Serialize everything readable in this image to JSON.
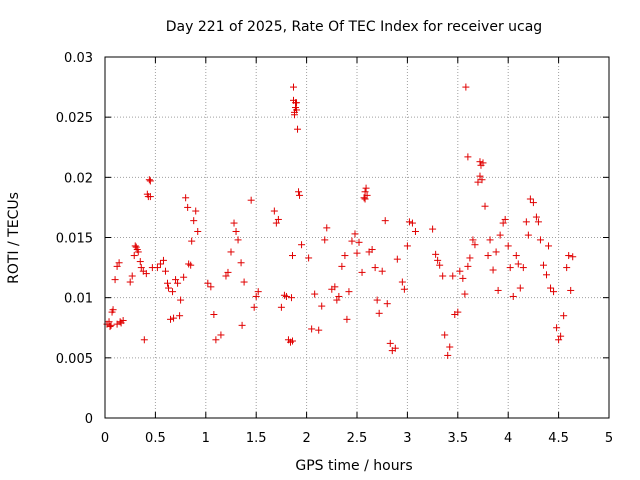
{
  "chart_data": {
    "type": "scatter",
    "title": "Day 221 of 2025, Rate Of TEC Index for receiver ucag",
    "xlabel": "GPS time / hours",
    "ylabel": "ROTI / TECUs",
    "xlim": [
      0,
      5
    ],
    "ylim": [
      0,
      0.03
    ],
    "grid": true,
    "marker": "+",
    "color": "#e00000",
    "x_ticks": [
      "0",
      "0.5",
      "1",
      "1.5",
      "2",
      "2.5",
      "3",
      "3.5",
      "4",
      "4.5",
      "5"
    ],
    "y_ticks": [
      "0",
      "0.005",
      "0.01",
      "0.015",
      "0.02",
      "0.025",
      "0.03"
    ],
    "series": [
      {
        "name": "ROTI",
        "x": [
          0.02,
          0.04,
          0.06,
          0.08,
          0.1,
          0.12,
          0.14,
          0.16,
          0.05,
          0.07,
          0.12,
          0.15,
          0.18,
          0.25,
          0.27,
          0.29,
          0.3,
          0.31,
          0.32,
          0.33,
          0.35,
          0.36,
          0.38,
          0.39,
          0.41,
          0.42,
          0.43,
          0.45,
          0.47,
          0.52,
          0.55,
          0.58,
          0.6,
          0.62,
          0.63,
          0.65,
          0.67,
          0.68,
          0.7,
          0.72,
          0.74,
          0.75,
          0.78,
          0.8,
          0.82,
          0.83,
          0.85,
          0.86,
          0.88,
          0.9,
          0.92,
          1.02,
          1.05,
          1.08,
          1.1,
          1.15,
          1.2,
          1.22,
          1.25,
          1.28,
          1.3,
          1.32,
          1.35,
          1.36,
          1.38,
          1.45,
          1.48,
          1.5,
          1.52,
          1.68,
          1.7,
          1.72,
          1.75,
          1.78,
          1.8,
          1.82,
          1.84,
          1.86,
          1.87,
          1.88,
          1.89,
          1.9,
          1.91,
          1.92,
          1.93,
          1.95,
          2.02,
          2.05,
          2.08,
          2.12,
          2.15,
          2.18,
          2.2,
          2.25,
          2.28,
          2.3,
          2.32,
          2.35,
          2.38,
          2.4,
          2.42,
          2.45,
          2.48,
          2.5,
          2.52,
          2.55,
          2.57,
          2.58,
          2.6,
          2.62,
          2.65,
          2.68,
          2.7,
          2.72,
          2.75,
          2.78,
          2.8,
          2.83,
          2.85,
          2.88,
          2.9,
          2.95,
          2.97,
          3.0,
          3.02,
          3.05,
          3.08,
          3.25,
          3.28,
          3.3,
          3.32,
          3.35,
          3.37,
          3.4,
          3.42,
          3.45,
          3.47,
          3.5,
          3.52,
          3.55,
          3.57,
          3.6,
          3.62,
          3.65,
          3.67,
          3.7,
          3.72,
          3.74,
          3.75,
          3.77,
          3.8,
          3.82,
          3.85,
          3.88,
          3.9,
          3.92,
          3.95,
          3.97,
          4.0,
          4.02,
          4.05,
          4.08,
          4.1,
          4.12,
          4.15,
          4.18,
          4.2,
          4.22,
          4.25,
          4.28,
          4.3,
          4.32,
          4.35,
          4.38,
          4.4,
          4.42,
          4.45,
          4.48,
          4.5,
          4.52,
          4.55,
          4.58,
          4.6,
          4.62,
          4.64,
          3.58,
          3.6,
          3.72,
          3.73,
          1.87,
          1.88,
          1.89,
          1.9,
          0.44,
          0.45,
          2.58,
          2.59,
          1.85,
          1.86
        ],
        "y": [
          0.0078,
          0.008,
          0.0077,
          0.009,
          0.0115,
          0.0126,
          0.0129,
          0.0079,
          0.0076,
          0.0088,
          0.0078,
          0.008,
          0.0081,
          0.0113,
          0.0118,
          0.0135,
          0.0143,
          0.0142,
          0.014,
          0.0138,
          0.013,
          0.0125,
          0.0122,
          0.0065,
          0.012,
          0.0186,
          0.0184,
          0.0197,
          0.0125,
          0.0125,
          0.0128,
          0.0131,
          0.0122,
          0.0112,
          0.0108,
          0.0082,
          0.0105,
          0.0083,
          0.0115,
          0.0112,
          0.0085,
          0.0098,
          0.0117,
          0.0183,
          0.0175,
          0.0128,
          0.0127,
          0.0147,
          0.0164,
          0.0172,
          0.0155,
          0.0112,
          0.0109,
          0.0086,
          0.0065,
          0.0069,
          0.0118,
          0.0121,
          0.0138,
          0.0162,
          0.0155,
          0.0148,
          0.0129,
          0.0077,
          0.0113,
          0.0181,
          0.0092,
          0.0101,
          0.0105,
          0.0172,
          0.0162,
          0.0165,
          0.0092,
          0.0102,
          0.0101,
          0.0065,
          0.0063,
          0.0135,
          0.0275,
          0.0254,
          0.0258,
          0.0262,
          0.024,
          0.0188,
          0.0185,
          0.0144,
          0.0133,
          0.0074,
          0.0103,
          0.0073,
          0.0093,
          0.0148,
          0.0158,
          0.0107,
          0.0109,
          0.0098,
          0.0101,
          0.0126,
          0.0135,
          0.0082,
          0.0105,
          0.0147,
          0.0153,
          0.0137,
          0.0146,
          0.0121,
          0.0183,
          0.0188,
          0.0185,
          0.0138,
          0.014,
          0.0125,
          0.0098,
          0.0087,
          0.0122,
          0.0164,
          0.0095,
          0.0062,
          0.0056,
          0.0058,
          0.0132,
          0.0113,
          0.0107,
          0.0143,
          0.0163,
          0.0162,
          0.0155,
          0.0157,
          0.0136,
          0.0131,
          0.0127,
          0.0118,
          0.0069,
          0.0052,
          0.0059,
          0.0118,
          0.0086,
          0.0088,
          0.0122,
          0.0116,
          0.0103,
          0.0126,
          0.0133,
          0.0148,
          0.0144,
          0.0196,
          0.0201,
          0.0198,
          0.0212,
          0.0176,
          0.0135,
          0.0148,
          0.0123,
          0.0138,
          0.0106,
          0.0152,
          0.0162,
          0.0165,
          0.0143,
          0.0125,
          0.0101,
          0.0135,
          0.0128,
          0.0108,
          0.0125,
          0.0163,
          0.0152,
          0.0182,
          0.0179,
          0.0167,
          0.0163,
          0.0148,
          0.0127,
          0.0119,
          0.0143,
          0.0108,
          0.0105,
          0.0075,
          0.0065,
          0.0068,
          0.0085,
          0.0125,
          0.0135,
          0.0106,
          0.0134,
          0.0275,
          0.0217,
          0.0213,
          0.021,
          0.0264,
          0.0252,
          0.0262,
          0.0256,
          0.0198,
          0.0184,
          0.0182,
          0.0191,
          0.01,
          0.0064
        ]
      }
    ]
  }
}
